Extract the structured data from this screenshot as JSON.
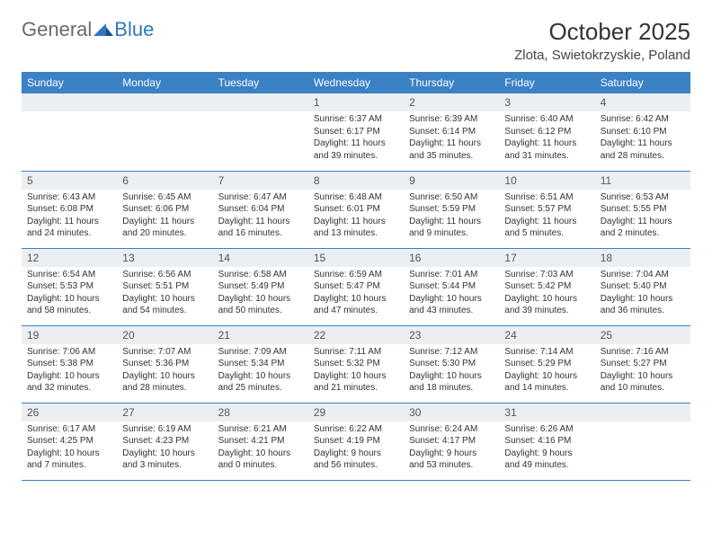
{
  "brand": {
    "part1": "General",
    "part2": "Blue"
  },
  "title": "October 2025",
  "location": "Zlota, Swietokrzyskie, Poland",
  "colors": {
    "header_bg": "#3a82c4",
    "header_text": "#ffffff",
    "daynum_bg": "#eceff1",
    "border": "#3a82c4",
    "logo_gray": "#6a6a6a",
    "logo_blue": "#2f77bb"
  },
  "weekdays": [
    "Sunday",
    "Monday",
    "Tuesday",
    "Wednesday",
    "Thursday",
    "Friday",
    "Saturday"
  ],
  "weeks": [
    [
      {
        "n": "",
        "sr": "",
        "ss": "",
        "dl": ""
      },
      {
        "n": "",
        "sr": "",
        "ss": "",
        "dl": ""
      },
      {
        "n": "",
        "sr": "",
        "ss": "",
        "dl": ""
      },
      {
        "n": "1",
        "sr": "Sunrise: 6:37 AM",
        "ss": "Sunset: 6:17 PM",
        "dl": "Daylight: 11 hours and 39 minutes."
      },
      {
        "n": "2",
        "sr": "Sunrise: 6:39 AM",
        "ss": "Sunset: 6:14 PM",
        "dl": "Daylight: 11 hours and 35 minutes."
      },
      {
        "n": "3",
        "sr": "Sunrise: 6:40 AM",
        "ss": "Sunset: 6:12 PM",
        "dl": "Daylight: 11 hours and 31 minutes."
      },
      {
        "n": "4",
        "sr": "Sunrise: 6:42 AM",
        "ss": "Sunset: 6:10 PM",
        "dl": "Daylight: 11 hours and 28 minutes."
      }
    ],
    [
      {
        "n": "5",
        "sr": "Sunrise: 6:43 AM",
        "ss": "Sunset: 6:08 PM",
        "dl": "Daylight: 11 hours and 24 minutes."
      },
      {
        "n": "6",
        "sr": "Sunrise: 6:45 AM",
        "ss": "Sunset: 6:06 PM",
        "dl": "Daylight: 11 hours and 20 minutes."
      },
      {
        "n": "7",
        "sr": "Sunrise: 6:47 AM",
        "ss": "Sunset: 6:04 PM",
        "dl": "Daylight: 11 hours and 16 minutes."
      },
      {
        "n": "8",
        "sr": "Sunrise: 6:48 AM",
        "ss": "Sunset: 6:01 PM",
        "dl": "Daylight: 11 hours and 13 minutes."
      },
      {
        "n": "9",
        "sr": "Sunrise: 6:50 AM",
        "ss": "Sunset: 5:59 PM",
        "dl": "Daylight: 11 hours and 9 minutes."
      },
      {
        "n": "10",
        "sr": "Sunrise: 6:51 AM",
        "ss": "Sunset: 5:57 PM",
        "dl": "Daylight: 11 hours and 5 minutes."
      },
      {
        "n": "11",
        "sr": "Sunrise: 6:53 AM",
        "ss": "Sunset: 5:55 PM",
        "dl": "Daylight: 11 hours and 2 minutes."
      }
    ],
    [
      {
        "n": "12",
        "sr": "Sunrise: 6:54 AM",
        "ss": "Sunset: 5:53 PM",
        "dl": "Daylight: 10 hours and 58 minutes."
      },
      {
        "n": "13",
        "sr": "Sunrise: 6:56 AM",
        "ss": "Sunset: 5:51 PM",
        "dl": "Daylight: 10 hours and 54 minutes."
      },
      {
        "n": "14",
        "sr": "Sunrise: 6:58 AM",
        "ss": "Sunset: 5:49 PM",
        "dl": "Daylight: 10 hours and 50 minutes."
      },
      {
        "n": "15",
        "sr": "Sunrise: 6:59 AM",
        "ss": "Sunset: 5:47 PM",
        "dl": "Daylight: 10 hours and 47 minutes."
      },
      {
        "n": "16",
        "sr": "Sunrise: 7:01 AM",
        "ss": "Sunset: 5:44 PM",
        "dl": "Daylight: 10 hours and 43 minutes."
      },
      {
        "n": "17",
        "sr": "Sunrise: 7:03 AM",
        "ss": "Sunset: 5:42 PM",
        "dl": "Daylight: 10 hours and 39 minutes."
      },
      {
        "n": "18",
        "sr": "Sunrise: 7:04 AM",
        "ss": "Sunset: 5:40 PM",
        "dl": "Daylight: 10 hours and 36 minutes."
      }
    ],
    [
      {
        "n": "19",
        "sr": "Sunrise: 7:06 AM",
        "ss": "Sunset: 5:38 PM",
        "dl": "Daylight: 10 hours and 32 minutes."
      },
      {
        "n": "20",
        "sr": "Sunrise: 7:07 AM",
        "ss": "Sunset: 5:36 PM",
        "dl": "Daylight: 10 hours and 28 minutes."
      },
      {
        "n": "21",
        "sr": "Sunrise: 7:09 AM",
        "ss": "Sunset: 5:34 PM",
        "dl": "Daylight: 10 hours and 25 minutes."
      },
      {
        "n": "22",
        "sr": "Sunrise: 7:11 AM",
        "ss": "Sunset: 5:32 PM",
        "dl": "Daylight: 10 hours and 21 minutes."
      },
      {
        "n": "23",
        "sr": "Sunrise: 7:12 AM",
        "ss": "Sunset: 5:30 PM",
        "dl": "Daylight: 10 hours and 18 minutes."
      },
      {
        "n": "24",
        "sr": "Sunrise: 7:14 AM",
        "ss": "Sunset: 5:29 PM",
        "dl": "Daylight: 10 hours and 14 minutes."
      },
      {
        "n": "25",
        "sr": "Sunrise: 7:16 AM",
        "ss": "Sunset: 5:27 PM",
        "dl": "Daylight: 10 hours and 10 minutes."
      }
    ],
    [
      {
        "n": "26",
        "sr": "Sunrise: 6:17 AM",
        "ss": "Sunset: 4:25 PM",
        "dl": "Daylight: 10 hours and 7 minutes."
      },
      {
        "n": "27",
        "sr": "Sunrise: 6:19 AM",
        "ss": "Sunset: 4:23 PM",
        "dl": "Daylight: 10 hours and 3 minutes."
      },
      {
        "n": "28",
        "sr": "Sunrise: 6:21 AM",
        "ss": "Sunset: 4:21 PM",
        "dl": "Daylight: 10 hours and 0 minutes."
      },
      {
        "n": "29",
        "sr": "Sunrise: 6:22 AM",
        "ss": "Sunset: 4:19 PM",
        "dl": "Daylight: 9 hours and 56 minutes."
      },
      {
        "n": "30",
        "sr": "Sunrise: 6:24 AM",
        "ss": "Sunset: 4:17 PM",
        "dl": "Daylight: 9 hours and 53 minutes."
      },
      {
        "n": "31",
        "sr": "Sunrise: 6:26 AM",
        "ss": "Sunset: 4:16 PM",
        "dl": "Daylight: 9 hours and 49 minutes."
      },
      {
        "n": "",
        "sr": "",
        "ss": "",
        "dl": ""
      }
    ]
  ]
}
